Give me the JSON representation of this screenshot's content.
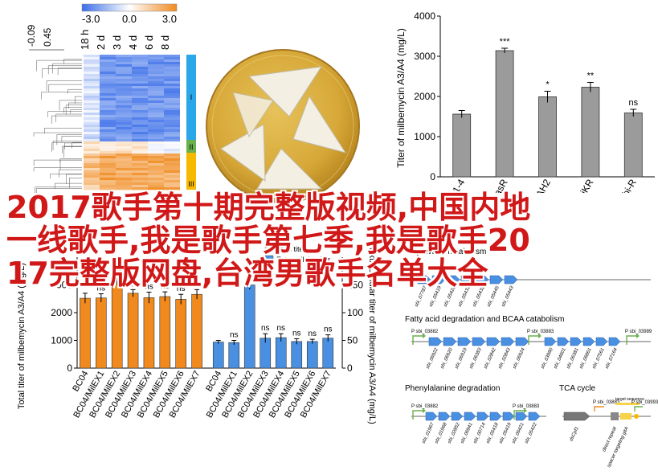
{
  "headline": {
    "line1": "2017歌手第十期完整版视频,中国内地",
    "line2": "一线歌手,我是歌手第七季,我是歌手20",
    "line3": "17完整版网盘,台湾男歌手名单大全"
  },
  "heatmap": {
    "scale_labels": [
      "-3.0",
      "0.0",
      "3.0"
    ],
    "col_labels": [
      "18 h",
      "2 d",
      "3 d",
      "4 d",
      "6 d",
      "8 d"
    ],
    "dendro_ticks": [
      "-0.09",
      "0.45"
    ],
    "clusters": [
      "I",
      "II",
      "III"
    ],
    "colors": {
      "low": "#3a6ee8",
      "mid": "#ffffff",
      "high": "#f08a1f",
      "cluster1": "#2aa7e8",
      "cluster2": "#6ab04c",
      "cluster3": "#f7b800"
    }
  },
  "top_chart": {
    "chart_data": {
      "type": "bar",
      "categories": [
        "BC-101-4",
        "kasR",
        "sbi-ΔH2",
        "ΔsbiKR",
        "Δsbi-R"
      ],
      "values": [
        1560,
        3140,
        1990,
        2230,
        1590
      ],
      "errors": [
        90,
        60,
        140,
        120,
        90
      ],
      "significance": [
        "",
        "***",
        "*",
        "**",
        "ns"
      ],
      "ylabel": "Titer of milbemycin A3/A4 (mg/L)",
      "ylim": [
        0,
        4000
      ],
      "yticks": [
        0,
        1000,
        2000,
        3000,
        4000
      ]
    }
  },
  "bottom_chart": {
    "legend": {
      "total": "Total titer",
      "extra": "Extracellular titer"
    },
    "colors": {
      "total": "#f08a1f",
      "extra": "#4a90e2"
    },
    "chart_data": {
      "type": "bar",
      "categories": [
        "BC04",
        "BC04/MilEX1",
        "BC04/MilEX2",
        "BC04/MilEX3",
        "BC04/MilEX4",
        "BC04/MilEX5",
        "BC04/MilEX6",
        "BC04/MilEX7"
      ],
      "series": [
        {
          "name": "Total titer",
          "values": [
            2520,
            2530,
            3120,
            2700,
            2540,
            2580,
            2480,
            2660
          ],
          "errors": [
            180,
            150,
            120,
            130,
            200,
            170,
            180,
            170
          ],
          "sig": [
            "",
            "ns",
            "***",
            "ns",
            "ns",
            "ns",
            "ns",
            "ns"
          ]
        },
        {
          "name": "Extracellular titer",
          "values": [
            47,
            46,
            150,
            54,
            55,
            48,
            48,
            54
          ],
          "errors": [
            3,
            4,
            8,
            8,
            7,
            5,
            4,
            6
          ],
          "sig": [
            "",
            "ns",
            "**",
            "ns",
            "ns",
            "ns",
            "ns",
            "ns"
          ]
        }
      ],
      "ylabel_left": "Total titer of milbemycin A3/A4 (mg/L)",
      "ylabel_right": "Extracellular titer of milbemycin A3/A4 (mg/L)",
      "ylim_left": [
        0,
        4000
      ],
      "ylim_right": [
        0,
        200
      ],
      "yticks_left": [
        0,
        1000,
        2000,
        3000
      ],
      "yticks_right": [
        0,
        50,
        100,
        150
      ]
    }
  },
  "pathways": {
    "pyruvate": {
      "title": "Pyruvate metabolism"
    },
    "fatty": {
      "title": "Fatty acid degradation and BCAA catabolism",
      "promoters": [
        "P sbi_03882",
        "P sbi_03883",
        "P sbi_03993",
        "P sbi_03989"
      ],
      "genes_a": [
        "sbi_06922",
        "sbi_06920",
        "sbi_06919",
        "sbi_06383",
        "sbi_02842",
        "sbi_02843",
        "sbi_06924"
      ],
      "genes_b": [
        "sbi_03990",
        "sbi_04601",
        "sbi_06381",
        "sbi_06861",
        "sbi_07561",
        "sbi_07164"
      ]
    },
    "phenyl": {
      "title": "Phenylalanine degradation",
      "promoters": [
        "P sbi_03882",
        "P sbi_03883"
      ],
      "genes": [
        "sbi_01967",
        "sbi_01968",
        "sbi_02852",
        "sbi_06941",
        "sbi_00714",
        "sbi_05418",
        "sbi_05419",
        "sbi_06421",
        "sbi_05422"
      ]
    },
    "tca": {
      "title": "TCA cycle",
      "promoters": [
        "P sbi_03883",
        "P sbi_03993"
      ],
      "target_label": "target sequence",
      "genes": [
        "dsCpf1",
        "direct repeat",
        "spacer targeting gltA"
      ]
    },
    "pyruvate_genes": [
      "sbi_07787",
      "sbi_05419",
      "sbi_05420",
      "sbi_05431",
      "sbi_05432",
      "sbi_05445",
      "sbi_05443"
    ]
  }
}
